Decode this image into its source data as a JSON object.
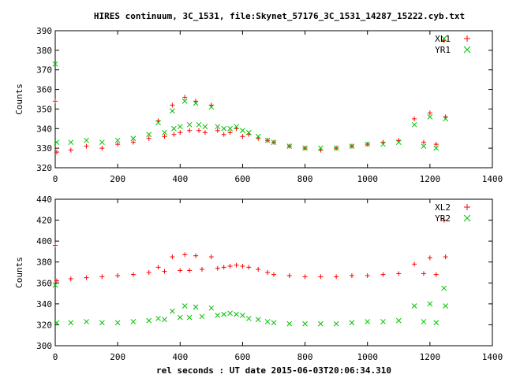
{
  "chart_data": [
    {
      "type": "scatter",
      "title": "HIRES continuum, 3C_1531, file:Skynet_57176_3C_1531_14287_15222.cyb.txt",
      "ylabel": "Counts",
      "xlabel": "",
      "xlim": [
        0,
        1400
      ],
      "ylim": [
        320,
        390
      ],
      "xticks": [
        "0",
        "200",
        "400",
        "600",
        "800",
        "1000",
        "1200",
        "1400"
      ],
      "yticks": [
        "320",
        "330",
        "340",
        "350",
        "360",
        "370",
        "380",
        "390"
      ],
      "grid": false,
      "legend_position": "top-right",
      "series": [
        {
          "name": "XL1",
          "color": "#ff0000",
          "marker": "plus",
          "x": [
            0,
            5,
            50,
            100,
            150,
            200,
            250,
            300,
            330,
            350,
            375,
            380,
            400,
            415,
            430,
            450,
            460,
            480,
            500,
            520,
            540,
            560,
            580,
            600,
            620,
            650,
            680,
            700,
            750,
            800,
            850,
            900,
            950,
            1000,
            1050,
            1100,
            1150,
            1180,
            1200,
            1220,
            1245,
            1250
          ],
          "y": [
            354,
            328,
            329,
            331,
            330,
            332,
            333,
            335,
            344,
            336,
            352,
            337,
            338,
            356,
            339,
            354,
            339,
            338,
            352,
            339,
            337,
            338,
            340,
            336,
            337,
            335,
            334,
            333,
            331,
            330,
            329,
            330,
            331,
            332,
            333,
            334,
            345,
            333,
            348,
            332,
            385,
            346
          ]
        },
        {
          "name": "YR1",
          "color": "#00c000",
          "marker": "x",
          "x": [
            0,
            5,
            50,
            100,
            150,
            200,
            250,
            300,
            330,
            350,
            375,
            380,
            400,
            415,
            430,
            450,
            460,
            480,
            500,
            520,
            540,
            560,
            580,
            600,
            620,
            650,
            680,
            700,
            750,
            800,
            850,
            900,
            950,
            1000,
            1050,
            1100,
            1150,
            1180,
            1200,
            1220,
            1245,
            1250
          ],
          "y": [
            373,
            333,
            333,
            334,
            333,
            334,
            335,
            337,
            343,
            338,
            349,
            340,
            341,
            354,
            342,
            353,
            342,
            341,
            351,
            341,
            340,
            340,
            341,
            339,
            338,
            336,
            334,
            333,
            331,
            330,
            330,
            330,
            331,
            332,
            332,
            333,
            342,
            331,
            346,
            330,
            386,
            345
          ]
        }
      ]
    },
    {
      "type": "scatter",
      "title": "",
      "ylabel": "Counts",
      "xlabel": "rel seconds : UT date 2015-06-03T20:06:34.310",
      "xlim": [
        0,
        1400
      ],
      "ylim": [
        300,
        440
      ],
      "xticks": [
        "0",
        "200",
        "400",
        "600",
        "800",
        "1000",
        "1200",
        "1400"
      ],
      "yticks": [
        "300",
        "320",
        "340",
        "360",
        "380",
        "400",
        "420",
        "440"
      ],
      "grid": false,
      "legend_position": "top-right",
      "series": [
        {
          "name": "XL2",
          "color": "#ff0000",
          "marker": "plus",
          "x": [
            0,
            5,
            50,
            100,
            150,
            200,
            250,
            300,
            330,
            350,
            375,
            400,
            415,
            430,
            450,
            470,
            500,
            520,
            540,
            560,
            580,
            600,
            620,
            650,
            680,
            700,
            750,
            800,
            850,
            900,
            950,
            1000,
            1050,
            1100,
            1150,
            1180,
            1200,
            1220,
            1245,
            1250
          ],
          "y": [
            396,
            362,
            364,
            365,
            366,
            367,
            368,
            370,
            375,
            371,
            385,
            372,
            387,
            372,
            386,
            373,
            385,
            374,
            375,
            376,
            377,
            376,
            375,
            373,
            370,
            368,
            367,
            366,
            366,
            366,
            367,
            367,
            368,
            369,
            378,
            369,
            384,
            368,
            420,
            385
          ]
        },
        {
          "name": "YR2",
          "color": "#00c000",
          "marker": "x",
          "x": [
            0,
            5,
            50,
            100,
            150,
            200,
            250,
            300,
            330,
            350,
            375,
            400,
            415,
            430,
            450,
            470,
            500,
            520,
            540,
            560,
            580,
            600,
            620,
            650,
            680,
            700,
            750,
            800,
            850,
            900,
            950,
            1000,
            1050,
            1100,
            1150,
            1180,
            1200,
            1220,
            1245,
            1250
          ],
          "y": [
            358,
            322,
            322,
            323,
            322,
            322,
            323,
            324,
            326,
            325,
            333,
            327,
            338,
            327,
            337,
            328,
            336,
            329,
            330,
            331,
            330,
            329,
            326,
            325,
            323,
            322,
            321,
            321,
            321,
            321,
            322,
            323,
            323,
            324,
            338,
            323,
            340,
            322,
            355,
            338
          ]
        }
      ]
    }
  ]
}
